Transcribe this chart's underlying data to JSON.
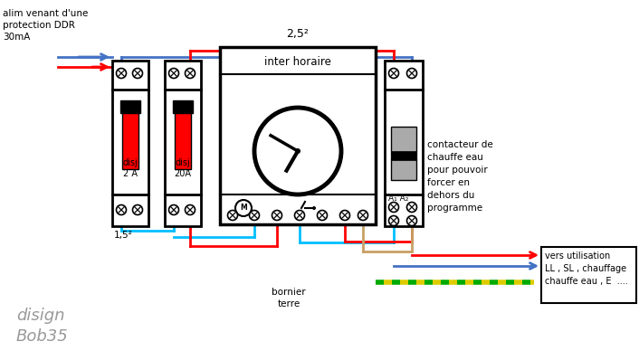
{
  "bg_color": "#ffffff",
  "wire_blue": "#4472c4",
  "wire_red": "#ff0000",
  "wire_cyan": "#00bfff",
  "wire_brown": "#c8a064",
  "wire_green": "#00aa00",
  "wire_yellow": "#ddcc00",
  "label_25": "2,5²",
  "label_15": "1,5²",
  "label_alim": "alim venant d'une\nprotection DDR\n30mA",
  "label_interhoraire": "inter horaire",
  "label_disj1": "disj\n2 A",
  "label_disj2": "disj\n20A",
  "label_contacteur": "contacteur de\nchauffe eau\npour pouvoir\nforcer en\ndehors du\nprogramme",
  "label_bornier": "bornier\nterre",
  "label_vers": "vers utilisation\nLL , SL , chauffage\nchauffe eau , E  ....",
  "label_disign": "disign\nBob35",
  "label_A1A2": "A₁ A₂"
}
